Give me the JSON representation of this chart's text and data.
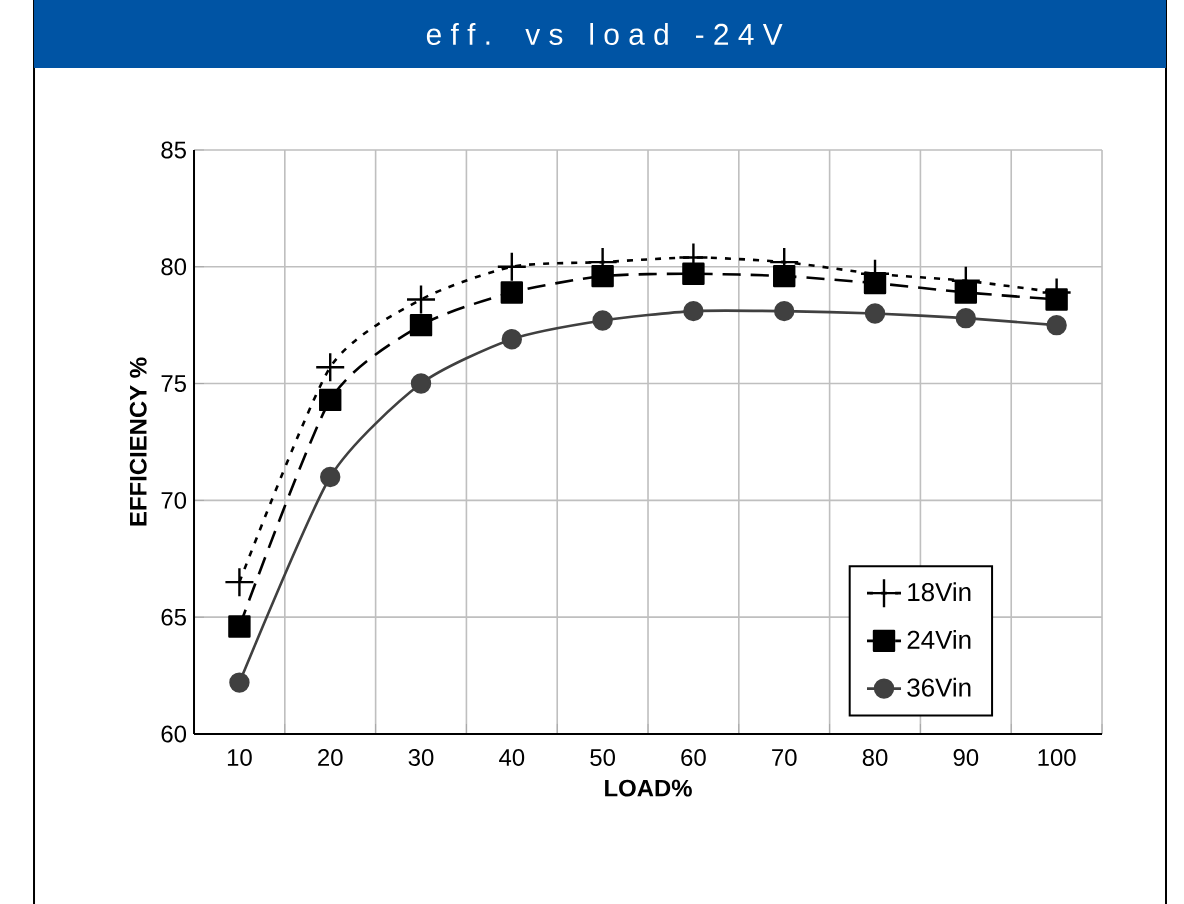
{
  "chart_data": {
    "type": "line",
    "title": "e f f .   v s   l o a d   - 2 4 V",
    "xlabel": "LOAD%",
    "ylabel": "EFFICIENCY %",
    "categories": [
      "10",
      "20",
      "30",
      "40",
      "50",
      "60",
      "70",
      "80",
      "90",
      "100"
    ],
    "ylim": [
      60,
      85
    ],
    "yticks": [
      60,
      65,
      70,
      75,
      80,
      85
    ],
    "grid": true,
    "legend": "bottom right",
    "series": [
      {
        "name": "18Vin",
        "color": "#000000",
        "marker": "cross",
        "line_style": "dotted",
        "values": [
          66.5,
          75.7,
          78.6,
          80.0,
          80.2,
          80.4,
          80.2,
          79.7,
          79.4,
          78.9
        ]
      },
      {
        "name": "24Vin",
        "color": "#000000",
        "marker": "square",
        "line_style": "dashed",
        "values": [
          64.6,
          74.3,
          77.5,
          78.9,
          79.6,
          79.7,
          79.6,
          79.3,
          78.9,
          78.6
        ]
      },
      {
        "name": "36Vin",
        "color": "#404040",
        "marker": "circle",
        "line_style": "solid",
        "values": [
          62.2,
          71.0,
          75.0,
          76.9,
          77.7,
          78.1,
          78.1,
          78.0,
          77.8,
          77.5
        ]
      }
    ]
  }
}
